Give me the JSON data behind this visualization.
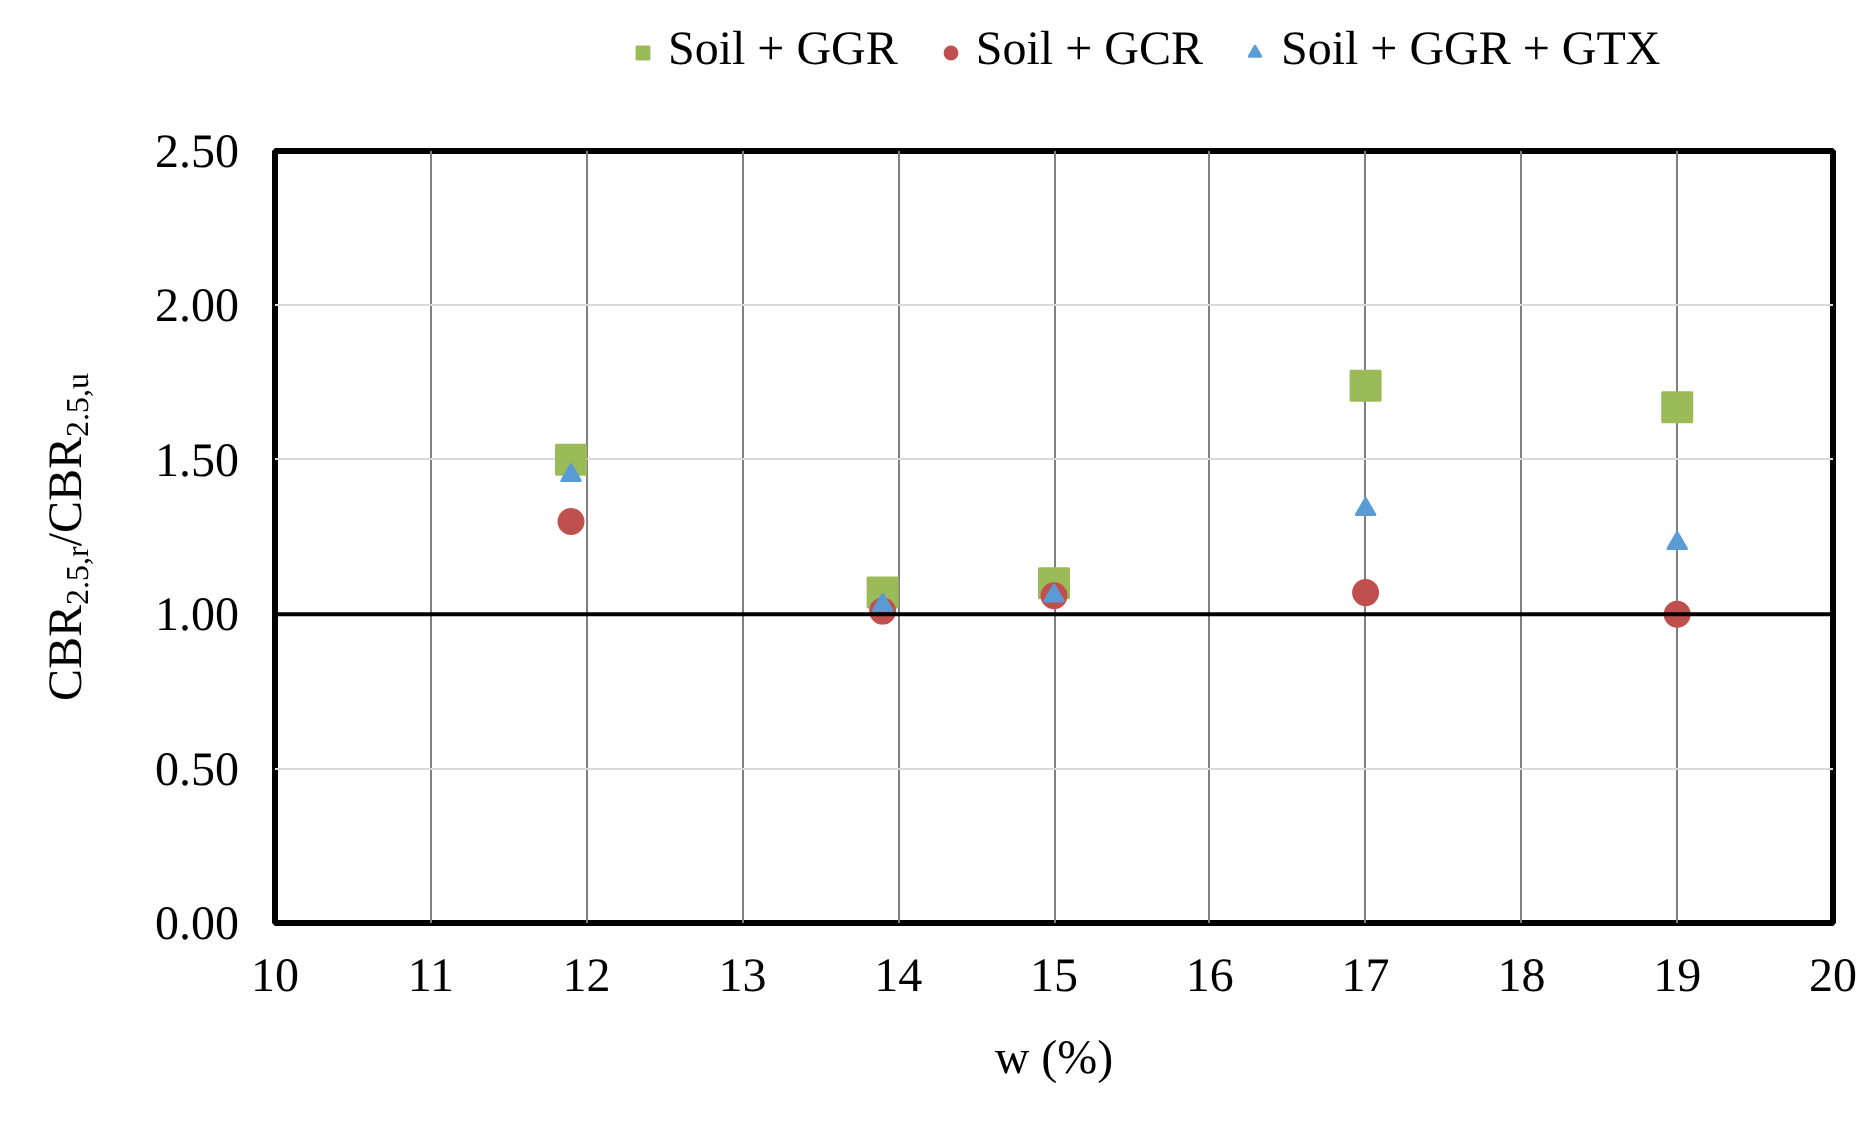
{
  "chart_data": {
    "type": "scatter",
    "xlabel": "w (%)",
    "ylabel": "CBR$_{2.5,r}$/CBR$_{2.5,u}$",
    "xlim": [
      10,
      20
    ],
    "xticks": [
      10,
      11,
      12,
      13,
      14,
      15,
      16,
      17,
      18,
      19,
      20
    ],
    "ylim": [
      0,
      2.5
    ],
    "yticks": [
      {
        "value": 0,
        "label": "0.00"
      },
      {
        "value": 0.5,
        "label": "0.50"
      },
      {
        "value": 1,
        "label": "1.00"
      },
      {
        "value": 1.5,
        "label": "1.50"
      },
      {
        "value": 2,
        "label": "2.00"
      },
      {
        "value": 2.5,
        "label": "2.50"
      }
    ],
    "x": [
      11.9,
      13.9,
      15.0,
      17.0,
      19.0
    ],
    "series": [
      {
        "name": "Soil + GGR",
        "color": "#9bbb59",
        "marker": "square",
        "values": [
          1.5,
          1.07,
          1.1,
          1.74,
          1.67
        ]
      },
      {
        "name": "Soil + GCR",
        "color": "#c0504d",
        "marker": "circle",
        "values": [
          1.3,
          1.01,
          1.06,
          1.07,
          1.0
        ]
      },
      {
        "name": "Soil + GGR + GTX",
        "color": "#5b9bd5",
        "marker": "triangle",
        "values": [
          1.45,
          1.03,
          1.06,
          1.34,
          1.23
        ]
      }
    ],
    "ref_lines": [
      {
        "axis": "y",
        "value": 1.0,
        "color": "#000000"
      }
    ],
    "grid": true,
    "legend": "top"
  }
}
